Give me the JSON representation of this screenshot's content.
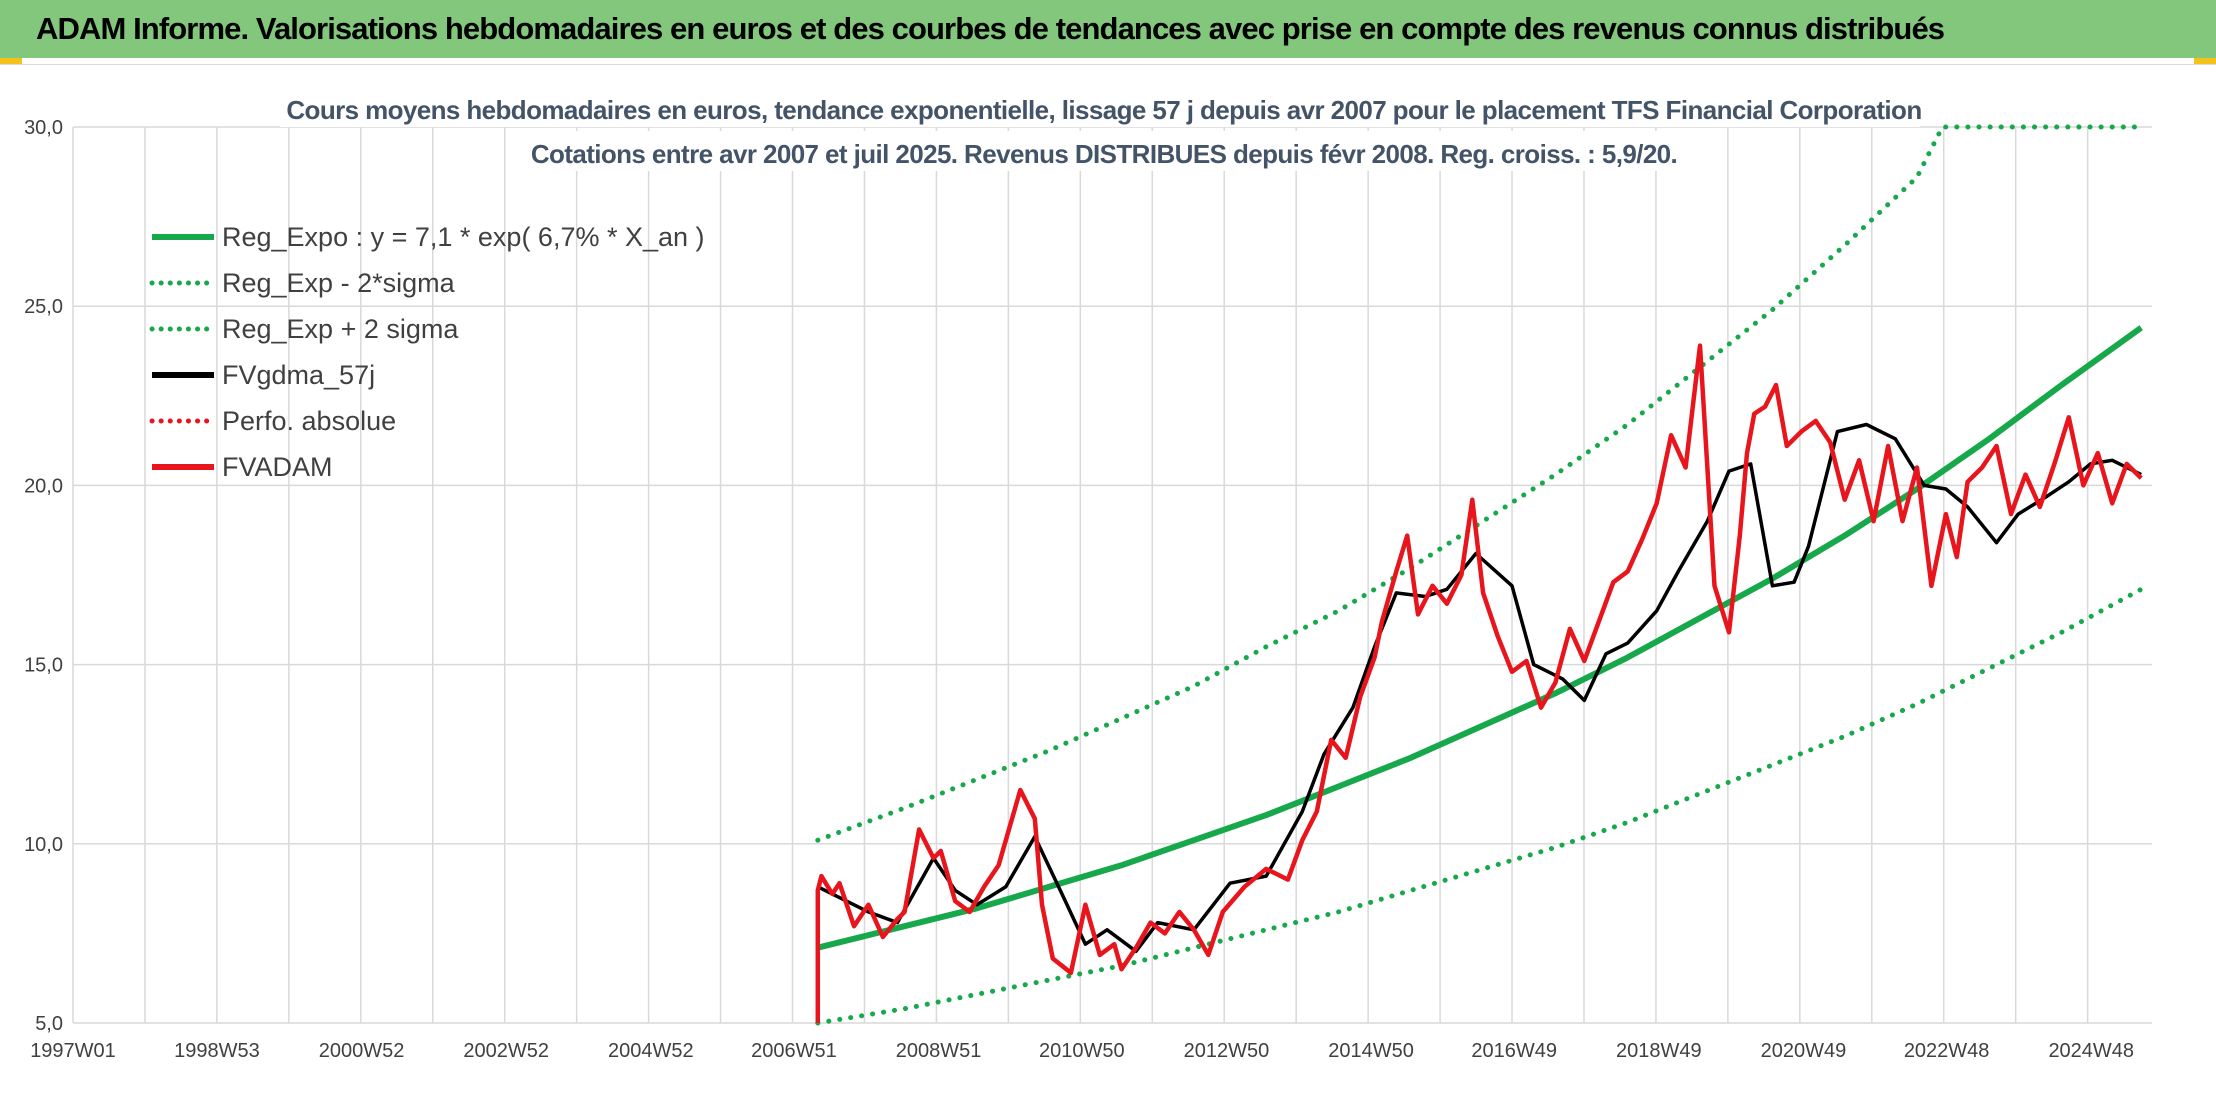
{
  "banner": {
    "title": "ADAM Informe. Valorisations hebdomadaires en euros et des courbes de tendances avec prise en compte des revenus connus distribués"
  },
  "colors": {
    "banner": "#82c77b",
    "reg_expo": "#18a84c",
    "fvgdma": "#000000",
    "fvadam": "#e8161c",
    "perfo": "#e8161c",
    "gridline": "#d9d9d9",
    "title_text": "#445468"
  },
  "chart_data": {
    "type": "line",
    "title_line1": "Cours moyens hebdomadaires en euros, tendance exponentielle, lissage 57 j depuis avr 2007 pour le placement TFS Financial Corporation",
    "title_line2": "Cotations entre avr 2007 et juil 2025. Revenus DISTRIBUES depuis févr 2008. Reg. croiss. : 5,9/20.",
    "xlabel": "",
    "ylabel": "",
    "xlim": [
      1997.0,
      2025.75
    ],
    "ylim": [
      5,
      30
    ],
    "x_ticks": [
      {
        "label": "1997W01",
        "x": 1997.0
      },
      {
        "label": "1998W53",
        "x": 1998.99
      },
      {
        "label": "2000W52",
        "x": 2000.99
      },
      {
        "label": "2002W52",
        "x": 2002.99
      },
      {
        "label": "2004W52",
        "x": 2004.99
      },
      {
        "label": "2006W51",
        "x": 2006.97
      },
      {
        "label": "2008W51",
        "x": 2008.97
      },
      {
        "label": "2010W50",
        "x": 2010.95
      },
      {
        "label": "2012W50",
        "x": 2012.95
      },
      {
        "label": "2014W50",
        "x": 2014.95
      },
      {
        "label": "2016W49",
        "x": 2016.93
      },
      {
        "label": "2018W49",
        "x": 2018.93
      },
      {
        "label": "2020W49",
        "x": 2020.93
      },
      {
        "label": "2022W48",
        "x": 2022.91
      },
      {
        "label": "2024W48",
        "x": 2024.91
      }
    ],
    "y_ticks": [
      {
        "label": "5,0",
        "y": 5
      },
      {
        "label": "10,0",
        "y": 10
      },
      {
        "label": "15,0",
        "y": 15
      },
      {
        "label": "20,0",
        "y": 20
      },
      {
        "label": "25,0",
        "y": 25
      },
      {
        "label": "30,0",
        "y": 30
      }
    ],
    "grid": true,
    "legend_position": "top-left",
    "series": [
      {
        "name": "Reg_Expo : y = 7,1 * exp( 6,7% *  X_an )",
        "color": "#18a84c",
        "style": "solid",
        "x": [
          2007.3,
          2008.5,
          2009.5,
          2010.5,
          2011.5,
          2012.5,
          2013.5,
          2014.5,
          2015.5,
          2016.5,
          2017.5,
          2018.5,
          2019.5,
          2020.5,
          2021.5,
          2022.5,
          2023.5,
          2024.5,
          2025.6
        ],
        "y": [
          7.1,
          7.7,
          8.2,
          8.8,
          9.4,
          10.1,
          10.8,
          11.6,
          12.4,
          13.3,
          14.2,
          15.2,
          16.3,
          17.4,
          18.6,
          19.9,
          21.3,
          22.8,
          24.4
        ]
      },
      {
        "name": "Reg_Exp - 2*sigma",
        "color": "#18a84c",
        "style": "dotted",
        "x": [
          2007.3,
          2008.5,
          2009.5,
          2010.5,
          2011.5,
          2012.5,
          2013.5,
          2014.5,
          2015.5,
          2016.5,
          2017.5,
          2018.5,
          2019.5,
          2020.5,
          2021.5,
          2022.5,
          2023.5,
          2024.5,
          2025.6
        ],
        "y": [
          5.0,
          5.4,
          5.8,
          6.2,
          6.6,
          7.1,
          7.6,
          8.1,
          8.7,
          9.3,
          9.9,
          10.6,
          11.4,
          12.2,
          13.0,
          13.9,
          14.9,
          15.9,
          17.1
        ]
      },
      {
        "name": "Reg_Exp + 2 sigma",
        "color": "#18a84c",
        "style": "dotted",
        "x": [
          2007.3,
          2008.5,
          2009.5,
          2010.5,
          2011.5,
          2012.5,
          2013.5,
          2014.5,
          2015.5,
          2016.5,
          2017.5,
          2018.5,
          2019.5,
          2020.5,
          2021.5,
          2022.5,
          2022.85,
          2023.5,
          2024.5,
          2025.6
        ],
        "y": [
          10.1,
          11.0,
          11.8,
          12.6,
          13.5,
          14.4,
          15.5,
          16.5,
          17.7,
          19.0,
          20.3,
          21.7,
          23.3,
          24.9,
          26.7,
          28.6,
          30.0,
          30.0,
          30.0,
          30.0
        ]
      },
      {
        "name": "FVgdma_57j",
        "color": "#000000",
        "style": "solid",
        "x": [
          2007.3,
          2007.6,
          2008.0,
          2008.4,
          2008.9,
          2009.2,
          2009.5,
          2009.9,
          2010.3,
          2010.7,
          2011.0,
          2011.3,
          2011.7,
          2012.0,
          2012.5,
          2013.0,
          2013.5,
          2014.0,
          2014.3,
          2014.7,
          2015.0,
          2015.3,
          2015.7,
          2016.0,
          2016.4,
          2016.9,
          2017.2,
          2017.6,
          2017.9,
          2018.2,
          2018.5,
          2018.9,
          2019.2,
          2019.6,
          2019.9,
          2020.2,
          2020.5,
          2020.8,
          2021.0,
          2021.4,
          2021.8,
          2022.2,
          2022.6,
          2022.9,
          2023.2,
          2023.6,
          2023.9,
          2024.3,
          2024.6,
          2024.9,
          2025.2,
          2025.6
        ],
        "y": [
          8.8,
          8.5,
          8.1,
          7.8,
          9.6,
          8.7,
          8.3,
          8.8,
          10.2,
          8.5,
          7.2,
          7.6,
          7.0,
          7.8,
          7.6,
          8.9,
          9.1,
          10.9,
          12.5,
          13.8,
          15.5,
          17.0,
          16.9,
          17.1,
          18.1,
          17.2,
          15.0,
          14.6,
          14.0,
          15.3,
          15.6,
          16.5,
          17.6,
          19.0,
          20.4,
          20.6,
          17.2,
          17.3,
          18.3,
          21.5,
          21.7,
          21.3,
          20.0,
          19.9,
          19.4,
          18.4,
          19.2,
          19.7,
          20.1,
          20.6,
          20.7,
          20.3
        ]
      },
      {
        "name": "Perfo. absolue",
        "color": "#e8161c",
        "style": "dotted",
        "x": [],
        "y": []
      },
      {
        "name": "FVADAM",
        "color": "#e8161c",
        "style": "solid",
        "x": [
          2007.3,
          2007.3,
          2007.35,
          2007.5,
          2007.6,
          2007.8,
          2008.0,
          2008.2,
          2008.4,
          2008.5,
          2008.7,
          2008.9,
          2009.0,
          2009.2,
          2009.4,
          2009.6,
          2009.8,
          2010.1,
          2010.3,
          2010.4,
          2010.55,
          2010.8,
          2011.0,
          2011.2,
          2011.4,
          2011.5,
          2011.7,
          2011.9,
          2012.1,
          2012.3,
          2012.5,
          2012.7,
          2012.9,
          2013.2,
          2013.5,
          2013.8,
          2014.0,
          2014.2,
          2014.4,
          2014.6,
          2014.8,
          2015.0,
          2015.1,
          2015.3,
          2015.45,
          2015.6,
          2015.8,
          2016.0,
          2016.2,
          2016.35,
          2016.5,
          2016.7,
          2016.9,
          2017.1,
          2017.3,
          2017.5,
          2017.7,
          2017.9,
          2018.1,
          2018.3,
          2018.5,
          2018.7,
          2018.9,
          2019.1,
          2019.3,
          2019.5,
          2019.7,
          2019.9,
          2020.05,
          2020.15,
          2020.25,
          2020.4,
          2020.55,
          2020.7,
          2020.9,
          2021.1,
          2021.3,
          2021.5,
          2021.7,
          2021.9,
          2022.1,
          2022.3,
          2022.5,
          2022.7,
          2022.9,
          2023.05,
          2023.2,
          2023.4,
          2023.6,
          2023.8,
          2024.0,
          2024.2,
          2024.4,
          2024.6,
          2024.8,
          2025.0,
          2025.2,
          2025.4,
          2025.6
        ],
        "y": [
          5.0,
          8.7,
          9.1,
          8.6,
          8.9,
          7.7,
          8.3,
          7.4,
          7.9,
          8.1,
          10.4,
          9.6,
          9.8,
          8.4,
          8.1,
          8.8,
          9.4,
          11.5,
          10.7,
          8.3,
          6.8,
          6.4,
          8.3,
          6.9,
          7.2,
          6.5,
          7.1,
          7.8,
          7.5,
          8.1,
          7.6,
          6.9,
          8.1,
          8.8,
          9.3,
          9.0,
          10.1,
          10.9,
          12.9,
          12.4,
          14.1,
          15.2,
          16.2,
          17.6,
          18.6,
          16.4,
          17.2,
          16.7,
          17.5,
          19.6,
          17.0,
          15.8,
          14.8,
          15.1,
          13.8,
          14.5,
          16.0,
          15.1,
          16.2,
          17.3,
          17.6,
          18.5,
          19.5,
          21.4,
          20.5,
          23.9,
          17.2,
          15.9,
          18.6,
          20.9,
          22.0,
          22.2,
          22.8,
          21.1,
          21.5,
          21.8,
          21.2,
          19.6,
          20.7,
          19.0,
          21.1,
          19.0,
          20.5,
          17.2,
          19.2,
          18.0,
          20.1,
          20.5,
          21.1,
          19.2,
          20.3,
          19.4,
          20.6,
          21.9,
          20.0,
          20.9,
          19.5,
          20.6,
          20.2
        ]
      }
    ]
  }
}
